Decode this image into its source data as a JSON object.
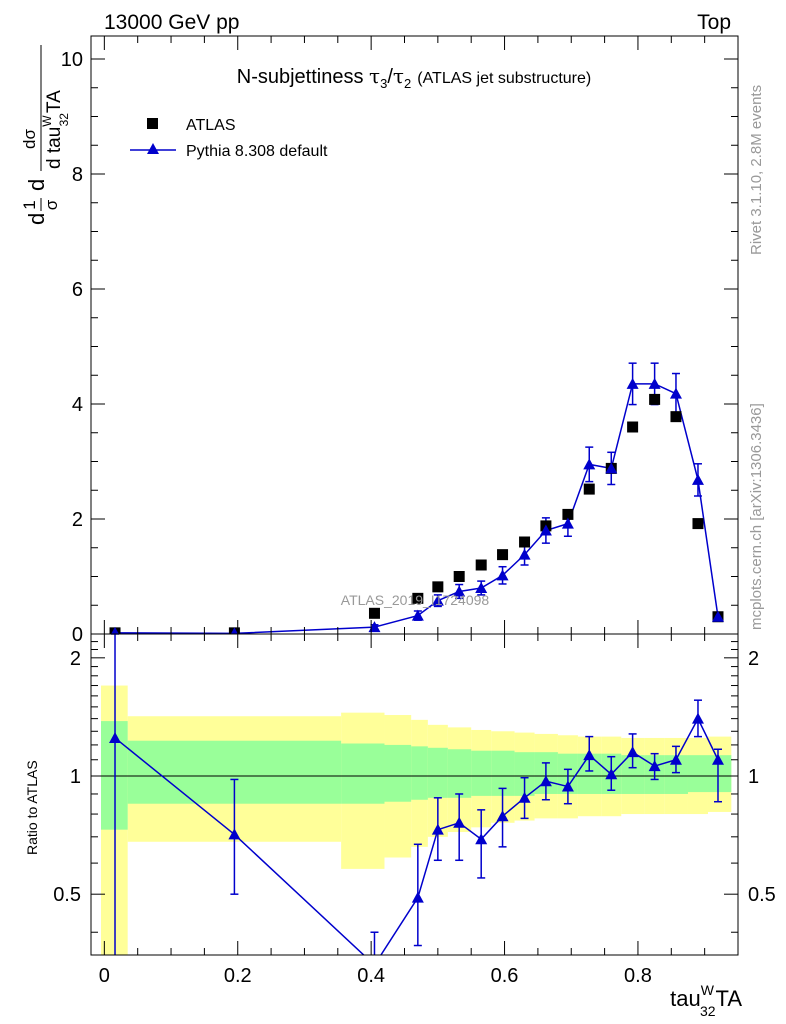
{
  "header": {
    "left": "13000 GeV pp",
    "right": "Top"
  },
  "side_labels": {
    "rivet": "Rivet 3.1.10,  2.8M events",
    "mcplots": "mcplots.cern.ch [arXiv:1306.3436]"
  },
  "watermark": "ATLAS_2019_I1724098",
  "colors": {
    "mc": "#0000cc",
    "data": "#000000",
    "band_inner": "#99ff99",
    "band_outer": "#ffff99"
  },
  "chart_data": [
    {
      "type": "scatter",
      "title": {
        "main": "N-subjettiness ",
        "tau3": "τ",
        "sub3": "3",
        "slash": "/",
        "tau2": "τ",
        "sub2": "2",
        "extra": "(ATLAS jet substructure)"
      },
      "ylabel": {
        "frac_num": "1",
        "frac_den": "σ",
        "d_num": "dσ",
        "d_den": "d tau",
        "sup": "W",
        "sub": "32",
        "tail": "TA"
      },
      "xlim": [
        -0.02,
        0.95
      ],
      "ylim": [
        0,
        10.4
      ],
      "yticks": [
        0,
        2,
        4,
        6,
        8,
        10
      ],
      "grid": false,
      "legend_position": "top-left",
      "series": [
        {
          "name": "ATLAS",
          "marker": "square",
          "x": [
            0.016,
            0.195,
            0.405,
            0.47,
            0.5,
            0.532,
            0.565,
            0.597,
            0.63,
            0.662,
            0.695,
            0.727,
            0.76,
            0.792,
            0.825,
            0.857,
            0.89,
            0.92
          ],
          "y": [
            0.02,
            0.02,
            0.36,
            0.62,
            0.82,
            1.0,
            1.2,
            1.38,
            1.6,
            1.88,
            2.08,
            2.52,
            2.88,
            3.6,
            4.08,
            3.78,
            1.92,
            0.3
          ]
        },
        {
          "name": "Pythia 8.308 default",
          "marker": "triangle",
          "x": [
            0.016,
            0.195,
            0.405,
            0.47,
            0.5,
            0.532,
            0.565,
            0.597,
            0.63,
            0.662,
            0.695,
            0.727,
            0.76,
            0.792,
            0.825,
            0.857,
            0.89,
            0.92
          ],
          "y": [
            0.02,
            0.01,
            0.12,
            0.32,
            0.58,
            0.74,
            0.8,
            1.02,
            1.38,
            1.8,
            1.92,
            2.95,
            2.88,
            4.35,
            4.35,
            4.18,
            2.68,
            0.3
          ],
          "yerr": [
            0.01,
            0.01,
            0.04,
            0.08,
            0.1,
            0.12,
            0.12,
            0.15,
            0.18,
            0.22,
            0.22,
            0.3,
            0.28,
            0.36,
            0.36,
            0.35,
            0.28,
            0.05
          ]
        }
      ]
    },
    {
      "type": "scatter",
      "xlabel": {
        "base": "tau",
        "sup": "W",
        "sub": "32",
        "tail": "TA"
      },
      "ylabel": "Ratio to ATLAS",
      "xlim": [
        -0.02,
        0.95
      ],
      "ylim": [
        0.35,
        2.3
      ],
      "yticks": [
        0.5,
        1,
        2
      ],
      "xticks": [
        0,
        0.2,
        0.4,
        0.6,
        0.8
      ],
      "ratio": {
        "x": [
          0.016,
          0.195,
          0.405,
          0.47,
          0.5,
          0.532,
          0.565,
          0.597,
          0.63,
          0.662,
          0.695,
          0.727,
          0.76,
          0.792,
          0.825,
          0.857,
          0.89,
          0.92
        ],
        "y": [
          1.25,
          0.71,
          0.33,
          0.49,
          0.73,
          0.76,
          0.69,
          0.79,
          0.88,
          0.97,
          0.94,
          1.13,
          1.01,
          1.15,
          1.06,
          1.1,
          1.4,
          1.1
        ],
        "lo": [
          0.3,
          0.5,
          0.25,
          0.37,
          0.61,
          0.61,
          0.55,
          0.66,
          0.78,
          0.87,
          0.85,
          1.03,
          0.92,
          1.05,
          0.98,
          1.02,
          1.26,
          0.86
        ],
        "hi": [
          2.3,
          0.98,
          0.4,
          0.67,
          0.88,
          0.9,
          0.82,
          0.93,
          0.99,
          1.08,
          1.04,
          1.26,
          1.12,
          1.28,
          1.14,
          1.19,
          1.56,
          1.17
        ]
      },
      "bands": {
        "edges": [
          -0.005,
          0.035,
          0.355,
          0.42,
          0.46,
          0.485,
          0.515,
          0.55,
          0.58,
          0.615,
          0.645,
          0.68,
          0.71,
          0.745,
          0.775,
          0.81,
          0.84,
          0.875,
          0.905,
          0.94
        ],
        "outer_lo": [
          0.35,
          0.68,
          0.58,
          0.62,
          0.66,
          0.7,
          0.72,
          0.74,
          0.76,
          0.77,
          0.78,
          0.78,
          0.79,
          0.79,
          0.8,
          0.8,
          0.8,
          0.8,
          0.81
        ],
        "outer_hi": [
          1.7,
          1.42,
          1.45,
          1.43,
          1.39,
          1.35,
          1.33,
          1.31,
          1.3,
          1.29,
          1.28,
          1.27,
          1.26,
          1.26,
          1.25,
          1.25,
          1.25,
          1.25,
          1.26
        ],
        "inner_lo": [
          0.73,
          0.85,
          0.85,
          0.86,
          0.87,
          0.88,
          0.88,
          0.89,
          0.89,
          0.89,
          0.9,
          0.9,
          0.9,
          0.9,
          0.9,
          0.9,
          0.9,
          0.91,
          0.91
        ],
        "inner_hi": [
          1.38,
          1.23,
          1.21,
          1.2,
          1.19,
          1.18,
          1.17,
          1.16,
          1.16,
          1.15,
          1.15,
          1.14,
          1.14,
          1.14,
          1.13,
          1.13,
          1.13,
          1.13,
          1.13
        ]
      }
    }
  ]
}
